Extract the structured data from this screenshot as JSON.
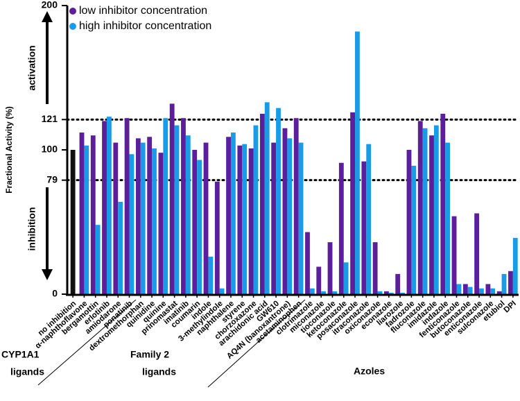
{
  "chart_data": {
    "type": "bar",
    "ylabel": "Fractional Activity (%)",
    "annotations": {
      "up": "activation",
      "down": "inhibition"
    },
    "groups": [
      [
        "CYP1A1",
        "ligands"
      ],
      [
        "Family 2",
        "ligands"
      ],
      [
        "Azoles"
      ]
    ],
    "categories": [
      "no inhibition",
      "α-naphthoflavone",
      "bergamottin",
      "erlotinib",
      "amiodarone",
      "ponatinib",
      "dextromethorphan",
      "quinidine",
      "quinine",
      "prinomastat",
      "imatinib",
      "coumarin",
      "indole",
      "3-methylindole",
      "naphthalene",
      "styrene",
      "chorzoxazone",
      "arachidonic acid",
      "GW610",
      "AQ4N (banoxantrone)",
      "acetaminophen",
      "clotrimazole",
      "miconazole",
      "tioconazole",
      "ketoconazole",
      "posaconazole",
      "itraconazole",
      "oxiconazole",
      "econazole",
      "liarozole",
      "fadrozole",
      "fluconazole",
      "imidazole",
      "indazole",
      "fenticonazole",
      "butoconazole",
      "enticonazole",
      "sulconazole",
      "etubiol",
      "DPI"
    ],
    "control": {
      "color": "#111111",
      "values": [
        100
      ]
    },
    "series": [
      {
        "name": "low inhibitor concentration",
        "color": "#5b1f9c",
        "values": [
          null,
          112,
          110,
          120,
          105,
          122,
          108,
          109,
          98,
          132,
          122,
          100,
          105,
          78,
          109,
          103,
          101,
          125,
          105,
          115,
          122,
          43,
          19,
          36,
          91,
          126,
          92,
          36,
          2,
          14,
          100,
          120,
          110,
          125,
          54,
          7,
          56,
          7,
          2,
          16
        ]
      },
      {
        "name": "high inhibitor concentration",
        "color": "#1a9be8",
        "values": [
          null,
          103,
          48,
          123,
          64,
          97,
          105,
          101,
          122,
          117,
          110,
          93,
          26,
          4,
          112,
          104,
          117,
          133,
          129,
          108,
          105,
          4,
          2,
          2,
          22,
          182,
          104,
          2,
          1,
          1,
          89,
          115,
          117,
          105,
          7,
          5,
          4,
          4,
          14,
          39
        ]
      }
    ],
    "ylim": [
      0,
      200
    ],
    "yticks": [
      0,
      79,
      100,
      121,
      200
    ],
    "reflines": [
      79,
      121
    ]
  }
}
